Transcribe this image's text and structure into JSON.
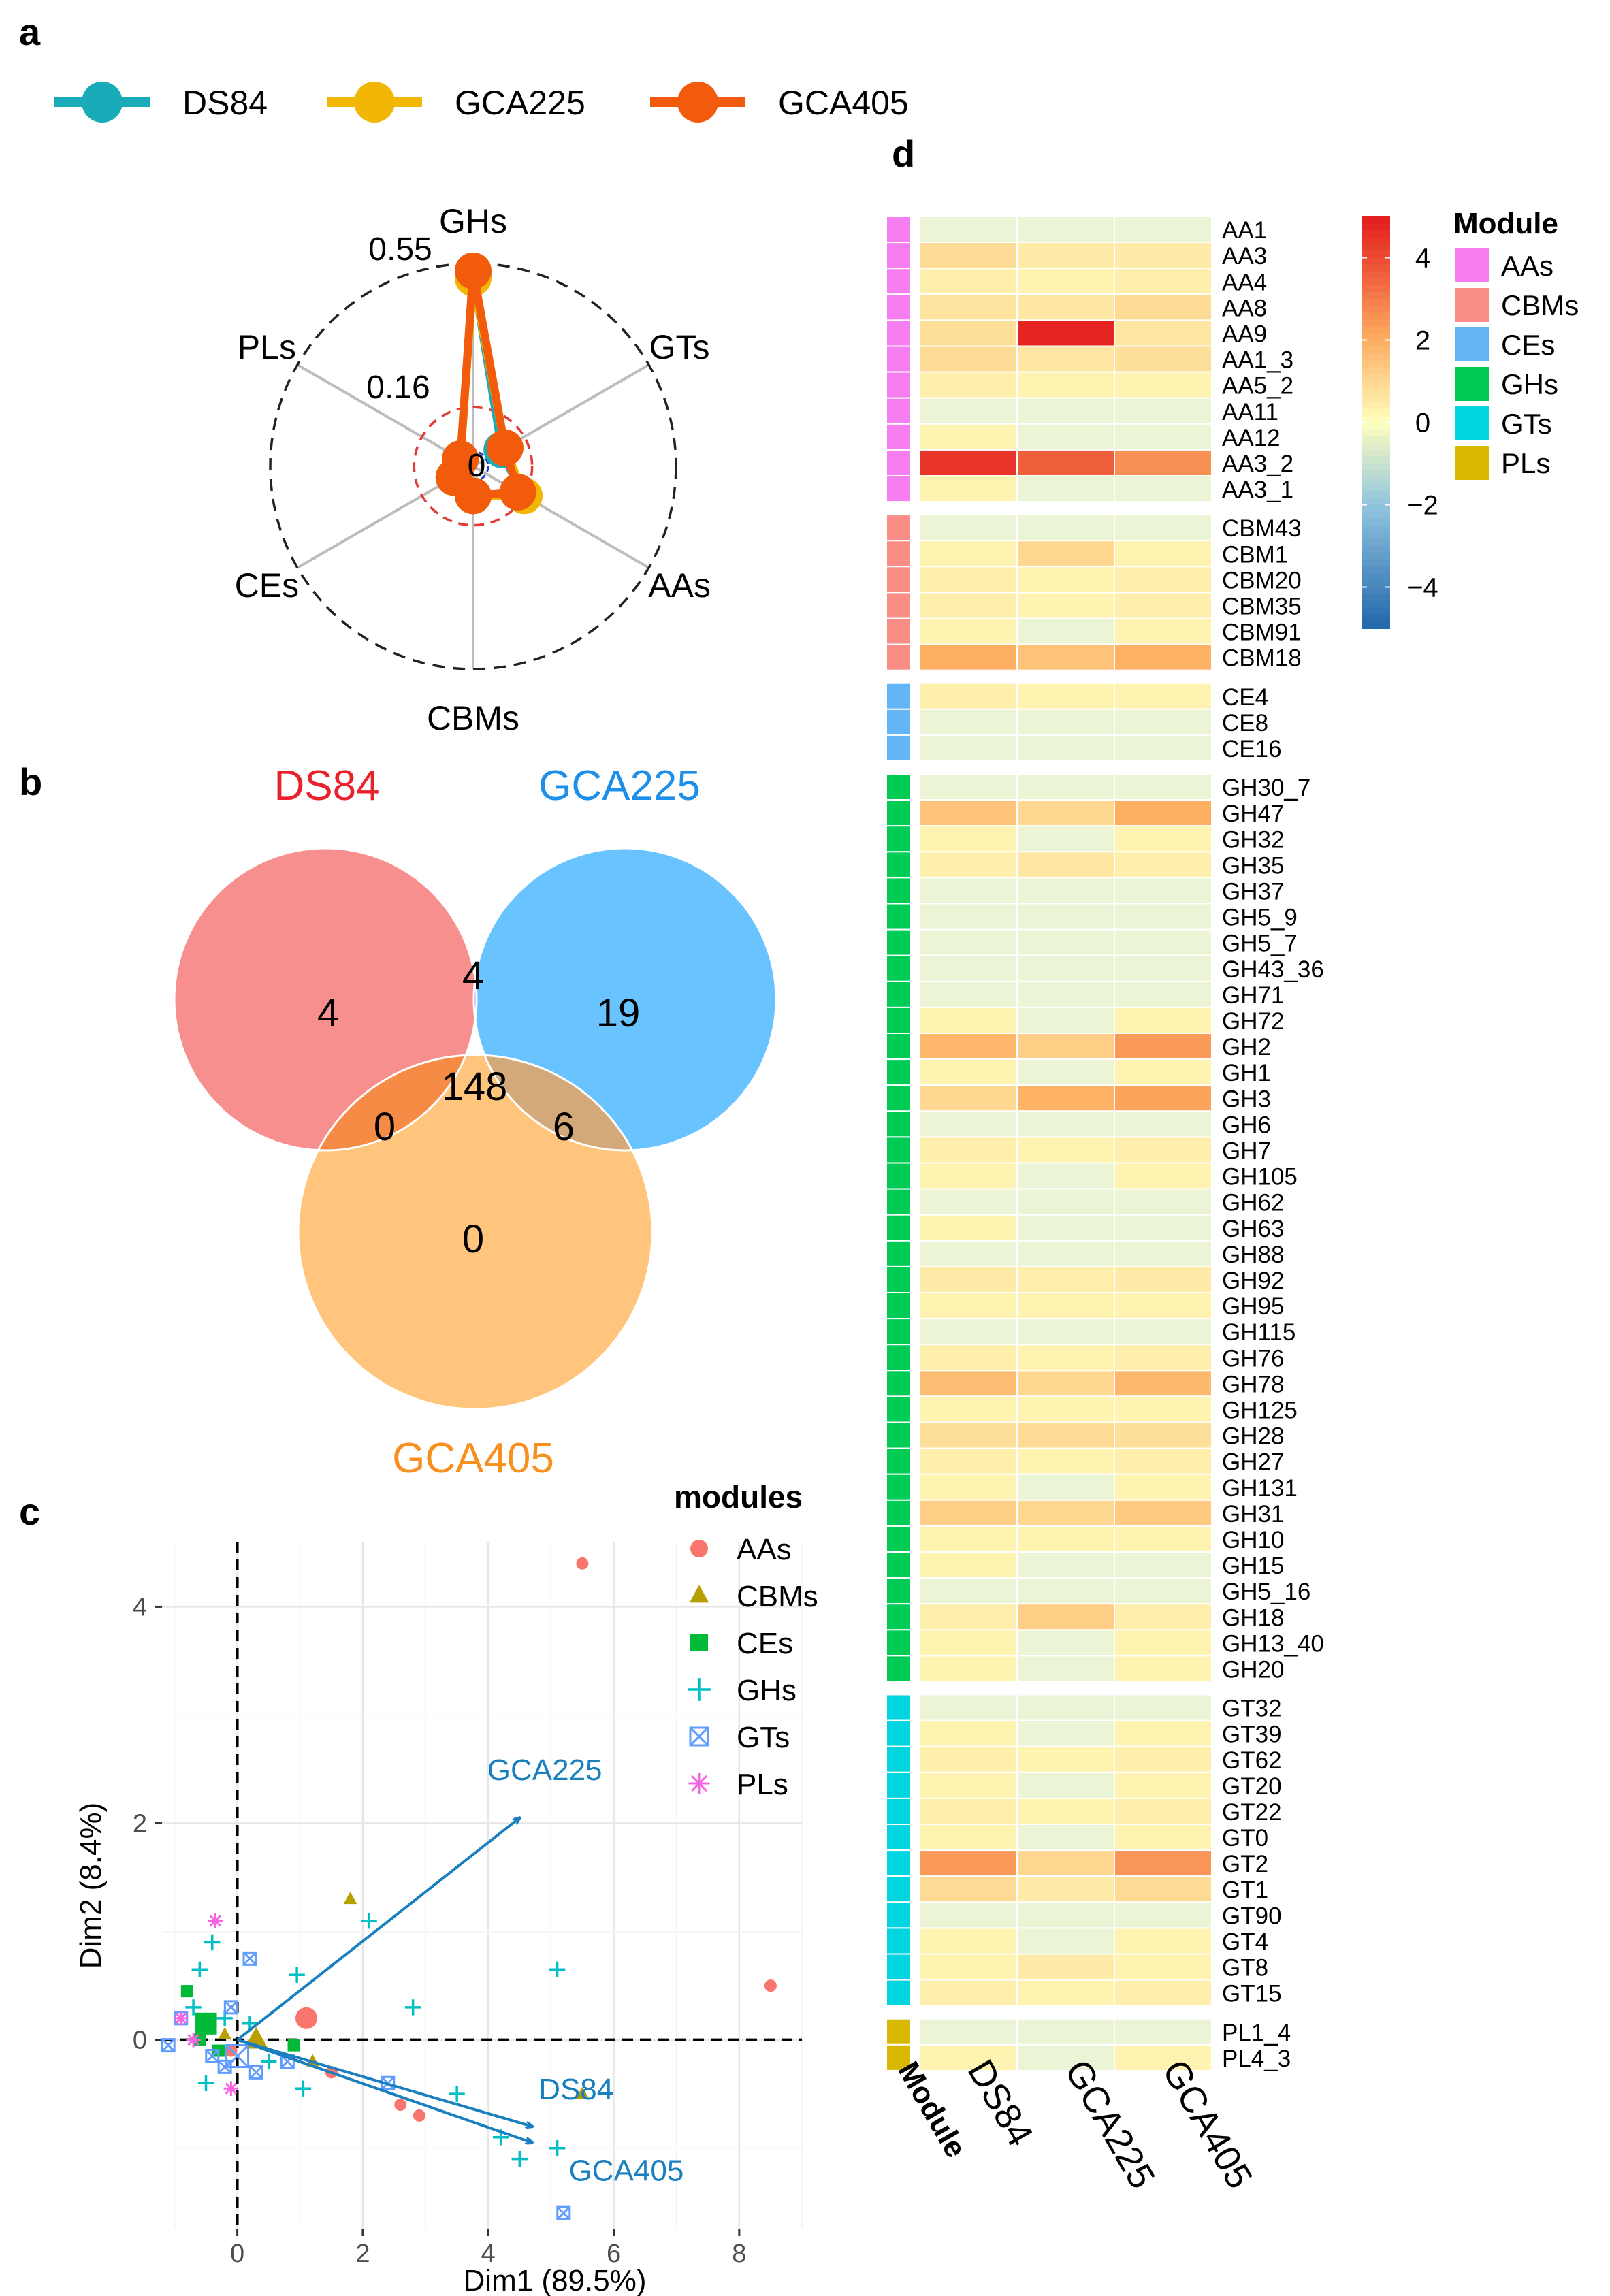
{
  "panel_labels": {
    "a": "a",
    "b": "b",
    "c": "c",
    "d": "d"
  },
  "colors": {
    "DS84": "#1aabb8",
    "GCA225": "#f2b705",
    "GCA405": "#f25a0c",
    "venn_a": "#f77b7b",
    "venn_b": "#4db8ff",
    "venn_c": "#ffbb66"
  },
  "chart_data": [
    {
      "type": "radar",
      "legend": [
        "DS84",
        "GCA225",
        "GCA405"
      ],
      "axes": [
        "GHs",
        "GTs",
        "AAs",
        "CBMs",
        "CEs",
        "PLs"
      ],
      "ring_labels": [
        "0.55",
        "0.16",
        "0"
      ],
      "rlim": [
        0,
        0.55
      ],
      "series": [
        {
          "name": "DS84",
          "values": [
            0.52,
            0.09,
            0.15,
            0.08,
            0.06,
            0.04
          ]
        },
        {
          "name": "GCA225",
          "values": [
            0.51,
            0.1,
            0.16,
            0.08,
            0.06,
            0.04
          ]
        },
        {
          "name": "GCA405",
          "values": [
            0.53,
            0.1,
            0.14,
            0.08,
            0.06,
            0.04
          ]
        }
      ]
    },
    {
      "type": "venn",
      "sets": [
        "DS84",
        "GCA225",
        "GCA405"
      ],
      "regions": {
        "a_only": "4",
        "b_only": "19",
        "c_only": "0",
        "ab": "4",
        "ac": "0",
        "bc": "6",
        "abc": "148"
      }
    },
    {
      "type": "scatter",
      "xlabel": "Dim1 (89.5%)",
      "ylabel": "Dim2 (8.4%)",
      "xlim": [
        -1.2,
        9
      ],
      "ylim": [
        -1.75,
        4.6
      ],
      "xticks": [
        "0",
        "2",
        "4",
        "6",
        "8"
      ],
      "yticks": [
        "0",
        "2",
        "4"
      ],
      "legend_title": "modules",
      "legend": [
        {
          "name": "AAs",
          "symbol": "circle",
          "color": "#f8766d"
        },
        {
          "name": "CBMs",
          "symbol": "triangle",
          "color": "#b79f00"
        },
        {
          "name": "CEs",
          "symbol": "square",
          "color": "#00ba38"
        },
        {
          "name": "GHs",
          "symbol": "plus",
          "color": "#00bfc4"
        },
        {
          "name": "GTs",
          "symbol": "boxx",
          "color": "#619cff"
        },
        {
          "name": "PLs",
          "symbol": "asterisk",
          "color": "#f564e3"
        }
      ],
      "points": [
        {
          "m": "AAs",
          "x": 5.5,
          "y": 4.4
        },
        {
          "m": "AAs",
          "x": 8.5,
          "y": 0.5
        },
        {
          "m": "AAs",
          "x": 1.1,
          "y": 0.2,
          "big": true
        },
        {
          "m": "AAs",
          "x": 1.5,
          "y": -0.3
        },
        {
          "m": "AAs",
          "x": 2.6,
          "y": -0.6
        },
        {
          "m": "AAs",
          "x": 2.9,
          "y": -0.7
        },
        {
          "m": "AAs",
          "x": -0.1,
          "y": -0.1
        },
        {
          "m": "CBMs",
          "x": 1.8,
          "y": 1.3
        },
        {
          "m": "CBMs",
          "x": 5.5,
          "y": -0.5
        },
        {
          "m": "CBMs",
          "x": 0.3,
          "y": 0.0,
          "big": true
        },
        {
          "m": "CBMs",
          "x": 1.2,
          "y": -0.2
        },
        {
          "m": "CBMs",
          "x": -0.2,
          "y": 0.05
        },
        {
          "m": "CEs",
          "x": -0.5,
          "y": 0.15,
          "big": true
        },
        {
          "m": "CEs",
          "x": -0.8,
          "y": 0.45
        },
        {
          "m": "CEs",
          "x": -0.6,
          "y": 0.0
        },
        {
          "m": "CEs",
          "x": 0.9,
          "y": -0.05
        },
        {
          "m": "CEs",
          "x": -0.3,
          "y": -0.1
        },
        {
          "m": "GHs",
          "x": 5.1,
          "y": 0.65
        },
        {
          "m": "GHs",
          "x": 2.1,
          "y": 1.1
        },
        {
          "m": "GHs",
          "x": 0.95,
          "y": 0.6
        },
        {
          "m": "GHs",
          "x": 2.8,
          "y": 0.3
        },
        {
          "m": "GHs",
          "x": 3.5,
          "y": -0.5
        },
        {
          "m": "GHs",
          "x": 4.2,
          "y": -0.9
        },
        {
          "m": "GHs",
          "x": 4.5,
          "y": -1.1
        },
        {
          "m": "GHs",
          "x": 5.1,
          "y": -1.0
        },
        {
          "m": "GHs",
          "x": -0.4,
          "y": 0.9
        },
        {
          "m": "GHs",
          "x": -0.6,
          "y": 0.65
        },
        {
          "m": "GHs",
          "x": -0.5,
          "y": -0.4
        },
        {
          "m": "GHs",
          "x": 1.05,
          "y": -0.45
        },
        {
          "m": "GHs",
          "x": 0.2,
          "y": 0.15
        },
        {
          "m": "GHs",
          "x": -0.2,
          "y": 0.2
        },
        {
          "m": "GHs",
          "x": 0.5,
          "y": -0.2
        },
        {
          "m": "GHs",
          "x": -0.7,
          "y": 0.3
        },
        {
          "m": "GTs",
          "x": 5.2,
          "y": -1.6
        },
        {
          "m": "GTs",
          "x": 2.4,
          "y": -0.4
        },
        {
          "m": "GTs",
          "x": 0.2,
          "y": 0.75
        },
        {
          "m": "GTs",
          "x": -0.1,
          "y": 0.3
        },
        {
          "m": "GTs",
          "x": -1.1,
          "y": -0.05
        },
        {
          "m": "GTs",
          "x": -0.9,
          "y": 0.2
        },
        {
          "m": "GTs",
          "x": 0.0,
          "y": -0.15,
          "big": true
        },
        {
          "m": "GTs",
          "x": -0.4,
          "y": -0.15
        },
        {
          "m": "GTs",
          "x": 0.3,
          "y": -0.3
        },
        {
          "m": "GTs",
          "x": 0.8,
          "y": -0.2
        },
        {
          "m": "GTs",
          "x": -0.2,
          "y": -0.25
        },
        {
          "m": "PLs",
          "x": -0.35,
          "y": 1.1
        },
        {
          "m": "PLs",
          "x": -0.1,
          "y": -0.45
        },
        {
          "m": "PLs",
          "x": -0.9,
          "y": 0.2
        },
        {
          "m": "PLs",
          "x": -0.7,
          "y": 0.0
        }
      ],
      "arrows": [
        {
          "label": "GCA225",
          "x": 4.5,
          "y": 2.05
        },
        {
          "label": "DS84",
          "x": 4.7,
          "y": -0.8
        },
        {
          "label": "GCA405",
          "x": 4.7,
          "y": -0.95
        }
      ]
    },
    {
      "type": "heatmap",
      "columns": [
        "DS84",
        "GCA225",
        "GCA405"
      ],
      "column_annotation": "Module",
      "legend_title": "Module",
      "scale_ticks": [
        "4",
        "2",
        "0",
        "−2",
        "−4"
      ],
      "scale_range": [
        -5,
        5
      ],
      "modules": [
        {
          "name": "AAs",
          "color": "#f77ef0"
        },
        {
          "name": "CBMs",
          "color": "#fa8d85"
        },
        {
          "name": "CEs",
          "color": "#64b5f6"
        },
        {
          "name": "GHs",
          "color": "#00cc55"
        },
        {
          "name": "GTs",
          "color": "#00d5e0"
        },
        {
          "name": "PLs",
          "color": "#d8b800"
        }
      ],
      "groups": [
        {
          "module": "AAs",
          "rows": [
            {
              "label": "AA1",
              "values": [
                0.1,
                0.0,
                0.1
              ]
            },
            {
              "label": "AA3",
              "values": [
                0.9,
                0.5,
                0.5
              ]
            },
            {
              "label": "AA4",
              "values": [
                0.4,
                0.3,
                0.4
              ]
            },
            {
              "label": "AA8",
              "values": [
                0.7,
                0.6,
                0.9
              ]
            },
            {
              "label": "AA9",
              "values": [
                0.8,
                4.8,
                0.6
              ]
            },
            {
              "label": "AA1_3",
              "values": [
                0.9,
                0.6,
                0.8
              ]
            },
            {
              "label": "AA5_2",
              "values": [
                0.4,
                0.3,
                0.3
              ]
            },
            {
              "label": "AA11",
              "values": [
                0.1,
                0.1,
                0.1
              ]
            },
            {
              "label": "AA12",
              "values": [
                0.3,
                0.2,
                0.2
              ]
            },
            {
              "label": "AA3_2",
              "values": [
                4.5,
                3.6,
                2.6
              ]
            },
            {
              "label": "AA3_1",
              "values": [
                0.3,
                0.2,
                0.2
              ]
            }
          ]
        },
        {
          "module": "CBMs",
          "rows": [
            {
              "label": "CBM43",
              "values": [
                0.1,
                0.1,
                0.1
              ]
            },
            {
              "label": "CBM1",
              "values": [
                0.3,
                1.0,
                0.3
              ]
            },
            {
              "label": "CBM20",
              "values": [
                0.4,
                0.3,
                0.4
              ]
            },
            {
              "label": "CBM35",
              "values": [
                0.4,
                0.3,
                0.4
              ]
            },
            {
              "label": "CBM91",
              "values": [
                0.3,
                0.2,
                0.3
              ]
            },
            {
              "label": "CBM18",
              "values": [
                2.0,
                1.5,
                1.9
              ]
            }
          ]
        },
        {
          "module": "CEs",
          "rows": [
            {
              "label": "CE4",
              "values": [
                0.4,
                0.3,
                0.3
              ]
            },
            {
              "label": "CE8",
              "values": [
                0.1,
                0.1,
                0.1
              ]
            },
            {
              "label": "CE16",
              "values": [
                0.1,
                0.1,
                0.1
              ]
            }
          ]
        },
        {
          "module": "GHs",
          "rows": [
            {
              "label": "GH30_7",
              "values": [
                0.1,
                0.1,
                0.1
              ]
            },
            {
              "label": "GH47",
              "values": [
                1.5,
                1.0,
                2.0
              ]
            },
            {
              "label": "GH32",
              "values": [
                0.3,
                0.2,
                0.3
              ]
            },
            {
              "label": "GH35",
              "values": [
                0.4,
                0.6,
                0.4
              ]
            },
            {
              "label": "GH37",
              "values": [
                0.2,
                0.2,
                0.2
              ]
            },
            {
              "label": "GH5_9",
              "values": [
                0.2,
                0.1,
                0.2
              ]
            },
            {
              "label": "GH5_7",
              "values": [
                0.1,
                0.1,
                0.1
              ]
            },
            {
              "label": "GH43_36",
              "values": [
                0.1,
                0.1,
                0.1
              ]
            },
            {
              "label": "GH71",
              "values": [
                0.2,
                0.2,
                0.2
              ]
            },
            {
              "label": "GH72",
              "values": [
                0.3,
                0.2,
                0.3
              ]
            },
            {
              "label": "GH2",
              "values": [
                1.8,
                1.2,
                2.4
              ]
            },
            {
              "label": "GH1",
              "values": [
                0.3,
                0.2,
                0.3
              ]
            },
            {
              "label": "GH3",
              "values": [
                1.0,
                1.9,
                2.2
              ]
            },
            {
              "label": "GH6",
              "values": [
                0.1,
                0.1,
                0.1
              ]
            },
            {
              "label": "GH7",
              "values": [
                0.4,
                0.3,
                0.4
              ]
            },
            {
              "label": "GH105",
              "values": [
                0.3,
                0.2,
                0.3
              ]
            },
            {
              "label": "GH62",
              "values": [
                0.2,
                0.2,
                0.2
              ]
            },
            {
              "label": "GH63",
              "values": [
                0.3,
                0.2,
                0.2
              ]
            },
            {
              "label": "GH88",
              "values": [
                0.2,
                0.2,
                0.2
              ]
            },
            {
              "label": "GH92",
              "values": [
                0.5,
                0.4,
                0.5
              ]
            },
            {
              "label": "GH95",
              "values": [
                0.3,
                0.3,
                0.3
              ]
            },
            {
              "label": "GH115",
              "values": [
                0.2,
                0.2,
                0.2
              ]
            },
            {
              "label": "GH76",
              "values": [
                0.4,
                0.3,
                0.4
              ]
            },
            {
              "label": "GH78",
              "values": [
                1.6,
                1.0,
                1.7
              ]
            },
            {
              "label": "GH125",
              "values": [
                0.3,
                0.3,
                0.3
              ]
            },
            {
              "label": "GH28",
              "values": [
                0.8,
                0.9,
                0.8
              ]
            },
            {
              "label": "GH27",
              "values": [
                0.4,
                0.3,
                0.4
              ]
            },
            {
              "label": "GH131",
              "values": [
                0.3,
                0.2,
                0.3
              ]
            },
            {
              "label": "GH31",
              "values": [
                1.2,
                1.0,
                1.3
              ]
            },
            {
              "label": "GH10",
              "values": [
                0.3,
                0.3,
                0.3
              ]
            },
            {
              "label": "GH15",
              "values": [
                0.3,
                0.2,
                0.2
              ]
            },
            {
              "label": "GH5_16",
              "values": [
                0.2,
                0.2,
                0.2
              ]
            },
            {
              "label": "GH18",
              "values": [
                0.4,
                1.2,
                0.4
              ]
            },
            {
              "label": "GH13_40",
              "values": [
                0.3,
                0.2,
                0.3
              ]
            },
            {
              "label": "GH20",
              "values": [
                0.3,
                0.2,
                0.3
              ]
            }
          ]
        },
        {
          "module": "GTs",
          "rows": [
            {
              "label": "GT32",
              "values": [
                0.1,
                0.1,
                0.1
              ]
            },
            {
              "label": "GT39",
              "values": [
                0.3,
                0.2,
                0.3
              ]
            },
            {
              "label": "GT62",
              "values": [
                0.4,
                0.3,
                0.4
              ]
            },
            {
              "label": "GT20",
              "values": [
                0.3,
                0.2,
                0.3
              ]
            },
            {
              "label": "GT22",
              "values": [
                0.4,
                0.3,
                0.4
              ]
            },
            {
              "label": "GT0",
              "values": [
                0.3,
                0.2,
                0.3
              ]
            },
            {
              "label": "GT2",
              "values": [
                2.4,
                1.0,
                2.5
              ]
            },
            {
              "label": "GT1",
              "values": [
                0.9,
                0.5,
                0.9
              ]
            },
            {
              "label": "GT90",
              "values": [
                0.2,
                0.2,
                0.2
              ]
            },
            {
              "label": "GT4",
              "values": [
                0.3,
                0.2,
                0.3
              ]
            },
            {
              "label": "GT8",
              "values": [
                0.3,
                0.5,
                0.3
              ]
            },
            {
              "label": "GT15",
              "values": [
                0.4,
                0.3,
                0.4
              ]
            }
          ]
        },
        {
          "module": "PLs",
          "rows": [
            {
              "label": "PL1_4",
              "values": [
                0.1,
                0.1,
                0.1
              ]
            },
            {
              "label": "PL4_3",
              "values": [
                0.3,
                0.2,
                0.3
              ]
            }
          ]
        }
      ]
    }
  ]
}
